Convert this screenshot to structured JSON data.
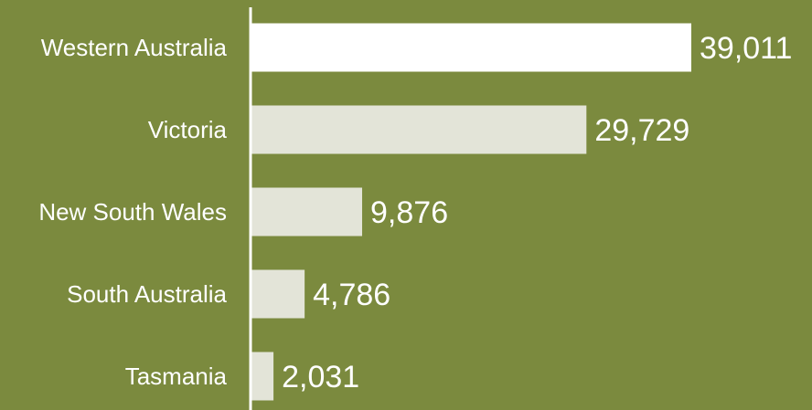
{
  "chart_data": {
    "type": "bar",
    "orientation": "horizontal",
    "categories": [
      "Western Australia",
      "Victoria",
      "New South Wales",
      "South Australia",
      "Tasmania"
    ],
    "values": [
      39011,
      29729,
      9876,
      4786,
      2031
    ],
    "value_labels": [
      "39,011",
      "29,729",
      "9,876",
      "4,786",
      "2,031"
    ],
    "title": "",
    "xlabel": "",
    "ylabel": "",
    "xlim": [
      0,
      39011
    ],
    "grid": false,
    "legend": "none",
    "colors": {
      "background": "#7b8a3e",
      "highlight_bar": "#ffffff",
      "bar": "#e3e4d8",
      "axis": "#ffffff",
      "text": "#ffffff"
    }
  }
}
